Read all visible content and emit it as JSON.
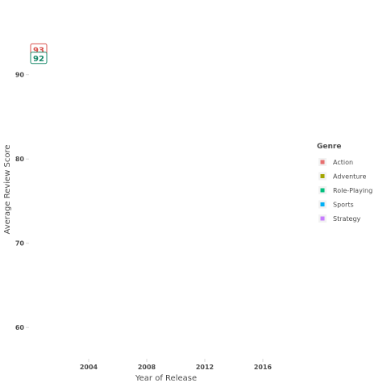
{
  "chart_data": {
    "type": "line",
    "title": "",
    "xlabel": "Year of Release",
    "ylabel": "Average Review Score",
    "x_ticks": [
      2004,
      2008,
      2012,
      2016
    ],
    "y_ticks": [
      60,
      70,
      80,
      90
    ],
    "xlim": [
      2000,
      2019
    ],
    "ylim": [
      56,
      96
    ],
    "legend": {
      "title": "Genre",
      "position": "right",
      "entries": [
        {
          "name": "Action",
          "color": "#e76f6f"
        },
        {
          "name": "Adventure",
          "color": "#a3a500"
        },
        {
          "name": "Role-Playing",
          "color": "#00bf7d"
        },
        {
          "name": "Sports",
          "color": "#00b0f6"
        },
        {
          "name": "Strategy",
          "color": "#c77cff"
        }
      ]
    },
    "annotations": [
      {
        "text": "93",
        "x": 2000,
        "y": 93,
        "color": "#d9534f"
      },
      {
        "text": "92",
        "x": 2000,
        "y": 92,
        "color": "#1a8a6b"
      }
    ]
  }
}
